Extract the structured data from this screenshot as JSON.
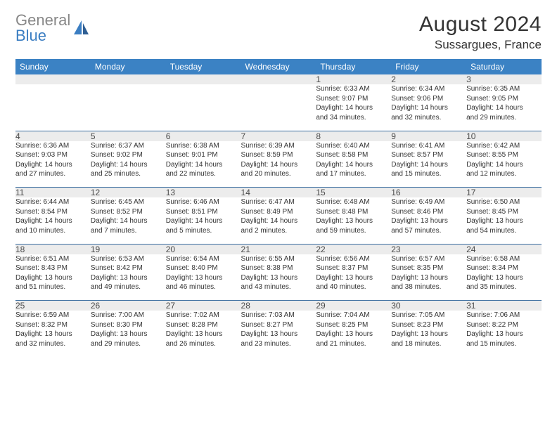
{
  "logo": {
    "text1": "General",
    "text2": "Blue"
  },
  "title": "August 2024",
  "subtitle": "Sussargues, France",
  "weekdays": [
    "Sunday",
    "Monday",
    "Tuesday",
    "Wednesday",
    "Thursday",
    "Friday",
    "Saturday"
  ],
  "colors": {
    "header_bg": "#3b82c4",
    "header_text": "#ffffff",
    "daynum_bg": "#ececec",
    "divider": "#3b6ea0",
    "logo_blue": "#3b7ec2",
    "logo_gray": "#888888"
  },
  "typography": {
    "title_fontsize": 30,
    "subtitle_fontsize": 17,
    "weekday_fontsize": 12,
    "daynum_fontsize": 12,
    "cell_fontsize": 10
  },
  "weeks": [
    [
      {
        "num": "",
        "lines": []
      },
      {
        "num": "",
        "lines": []
      },
      {
        "num": "",
        "lines": []
      },
      {
        "num": "",
        "lines": []
      },
      {
        "num": "1",
        "lines": [
          "Sunrise: 6:33 AM",
          "Sunset: 9:07 PM",
          "Daylight: 14 hours",
          "and 34 minutes."
        ]
      },
      {
        "num": "2",
        "lines": [
          "Sunrise: 6:34 AM",
          "Sunset: 9:06 PM",
          "Daylight: 14 hours",
          "and 32 minutes."
        ]
      },
      {
        "num": "3",
        "lines": [
          "Sunrise: 6:35 AM",
          "Sunset: 9:05 PM",
          "Daylight: 14 hours",
          "and 29 minutes."
        ]
      }
    ],
    [
      {
        "num": "4",
        "lines": [
          "Sunrise: 6:36 AM",
          "Sunset: 9:03 PM",
          "Daylight: 14 hours",
          "and 27 minutes."
        ]
      },
      {
        "num": "5",
        "lines": [
          "Sunrise: 6:37 AM",
          "Sunset: 9:02 PM",
          "Daylight: 14 hours",
          "and 25 minutes."
        ]
      },
      {
        "num": "6",
        "lines": [
          "Sunrise: 6:38 AM",
          "Sunset: 9:01 PM",
          "Daylight: 14 hours",
          "and 22 minutes."
        ]
      },
      {
        "num": "7",
        "lines": [
          "Sunrise: 6:39 AM",
          "Sunset: 8:59 PM",
          "Daylight: 14 hours",
          "and 20 minutes."
        ]
      },
      {
        "num": "8",
        "lines": [
          "Sunrise: 6:40 AM",
          "Sunset: 8:58 PM",
          "Daylight: 14 hours",
          "and 17 minutes."
        ]
      },
      {
        "num": "9",
        "lines": [
          "Sunrise: 6:41 AM",
          "Sunset: 8:57 PM",
          "Daylight: 14 hours",
          "and 15 minutes."
        ]
      },
      {
        "num": "10",
        "lines": [
          "Sunrise: 6:42 AM",
          "Sunset: 8:55 PM",
          "Daylight: 14 hours",
          "and 12 minutes."
        ]
      }
    ],
    [
      {
        "num": "11",
        "lines": [
          "Sunrise: 6:44 AM",
          "Sunset: 8:54 PM",
          "Daylight: 14 hours",
          "and 10 minutes."
        ]
      },
      {
        "num": "12",
        "lines": [
          "Sunrise: 6:45 AM",
          "Sunset: 8:52 PM",
          "Daylight: 14 hours",
          "and 7 minutes."
        ]
      },
      {
        "num": "13",
        "lines": [
          "Sunrise: 6:46 AM",
          "Sunset: 8:51 PM",
          "Daylight: 14 hours",
          "and 5 minutes."
        ]
      },
      {
        "num": "14",
        "lines": [
          "Sunrise: 6:47 AM",
          "Sunset: 8:49 PM",
          "Daylight: 14 hours",
          "and 2 minutes."
        ]
      },
      {
        "num": "15",
        "lines": [
          "Sunrise: 6:48 AM",
          "Sunset: 8:48 PM",
          "Daylight: 13 hours",
          "and 59 minutes."
        ]
      },
      {
        "num": "16",
        "lines": [
          "Sunrise: 6:49 AM",
          "Sunset: 8:46 PM",
          "Daylight: 13 hours",
          "and 57 minutes."
        ]
      },
      {
        "num": "17",
        "lines": [
          "Sunrise: 6:50 AM",
          "Sunset: 8:45 PM",
          "Daylight: 13 hours",
          "and 54 minutes."
        ]
      }
    ],
    [
      {
        "num": "18",
        "lines": [
          "Sunrise: 6:51 AM",
          "Sunset: 8:43 PM",
          "Daylight: 13 hours",
          "and 51 minutes."
        ]
      },
      {
        "num": "19",
        "lines": [
          "Sunrise: 6:53 AM",
          "Sunset: 8:42 PM",
          "Daylight: 13 hours",
          "and 49 minutes."
        ]
      },
      {
        "num": "20",
        "lines": [
          "Sunrise: 6:54 AM",
          "Sunset: 8:40 PM",
          "Daylight: 13 hours",
          "and 46 minutes."
        ]
      },
      {
        "num": "21",
        "lines": [
          "Sunrise: 6:55 AM",
          "Sunset: 8:38 PM",
          "Daylight: 13 hours",
          "and 43 minutes."
        ]
      },
      {
        "num": "22",
        "lines": [
          "Sunrise: 6:56 AM",
          "Sunset: 8:37 PM",
          "Daylight: 13 hours",
          "and 40 minutes."
        ]
      },
      {
        "num": "23",
        "lines": [
          "Sunrise: 6:57 AM",
          "Sunset: 8:35 PM",
          "Daylight: 13 hours",
          "and 38 minutes."
        ]
      },
      {
        "num": "24",
        "lines": [
          "Sunrise: 6:58 AM",
          "Sunset: 8:34 PM",
          "Daylight: 13 hours",
          "and 35 minutes."
        ]
      }
    ],
    [
      {
        "num": "25",
        "lines": [
          "Sunrise: 6:59 AM",
          "Sunset: 8:32 PM",
          "Daylight: 13 hours",
          "and 32 minutes."
        ]
      },
      {
        "num": "26",
        "lines": [
          "Sunrise: 7:00 AM",
          "Sunset: 8:30 PM",
          "Daylight: 13 hours",
          "and 29 minutes."
        ]
      },
      {
        "num": "27",
        "lines": [
          "Sunrise: 7:02 AM",
          "Sunset: 8:28 PM",
          "Daylight: 13 hours",
          "and 26 minutes."
        ]
      },
      {
        "num": "28",
        "lines": [
          "Sunrise: 7:03 AM",
          "Sunset: 8:27 PM",
          "Daylight: 13 hours",
          "and 23 minutes."
        ]
      },
      {
        "num": "29",
        "lines": [
          "Sunrise: 7:04 AM",
          "Sunset: 8:25 PM",
          "Daylight: 13 hours",
          "and 21 minutes."
        ]
      },
      {
        "num": "30",
        "lines": [
          "Sunrise: 7:05 AM",
          "Sunset: 8:23 PM",
          "Daylight: 13 hours",
          "and 18 minutes."
        ]
      },
      {
        "num": "31",
        "lines": [
          "Sunrise: 7:06 AM",
          "Sunset: 8:22 PM",
          "Daylight: 13 hours",
          "and 15 minutes."
        ]
      }
    ]
  ]
}
